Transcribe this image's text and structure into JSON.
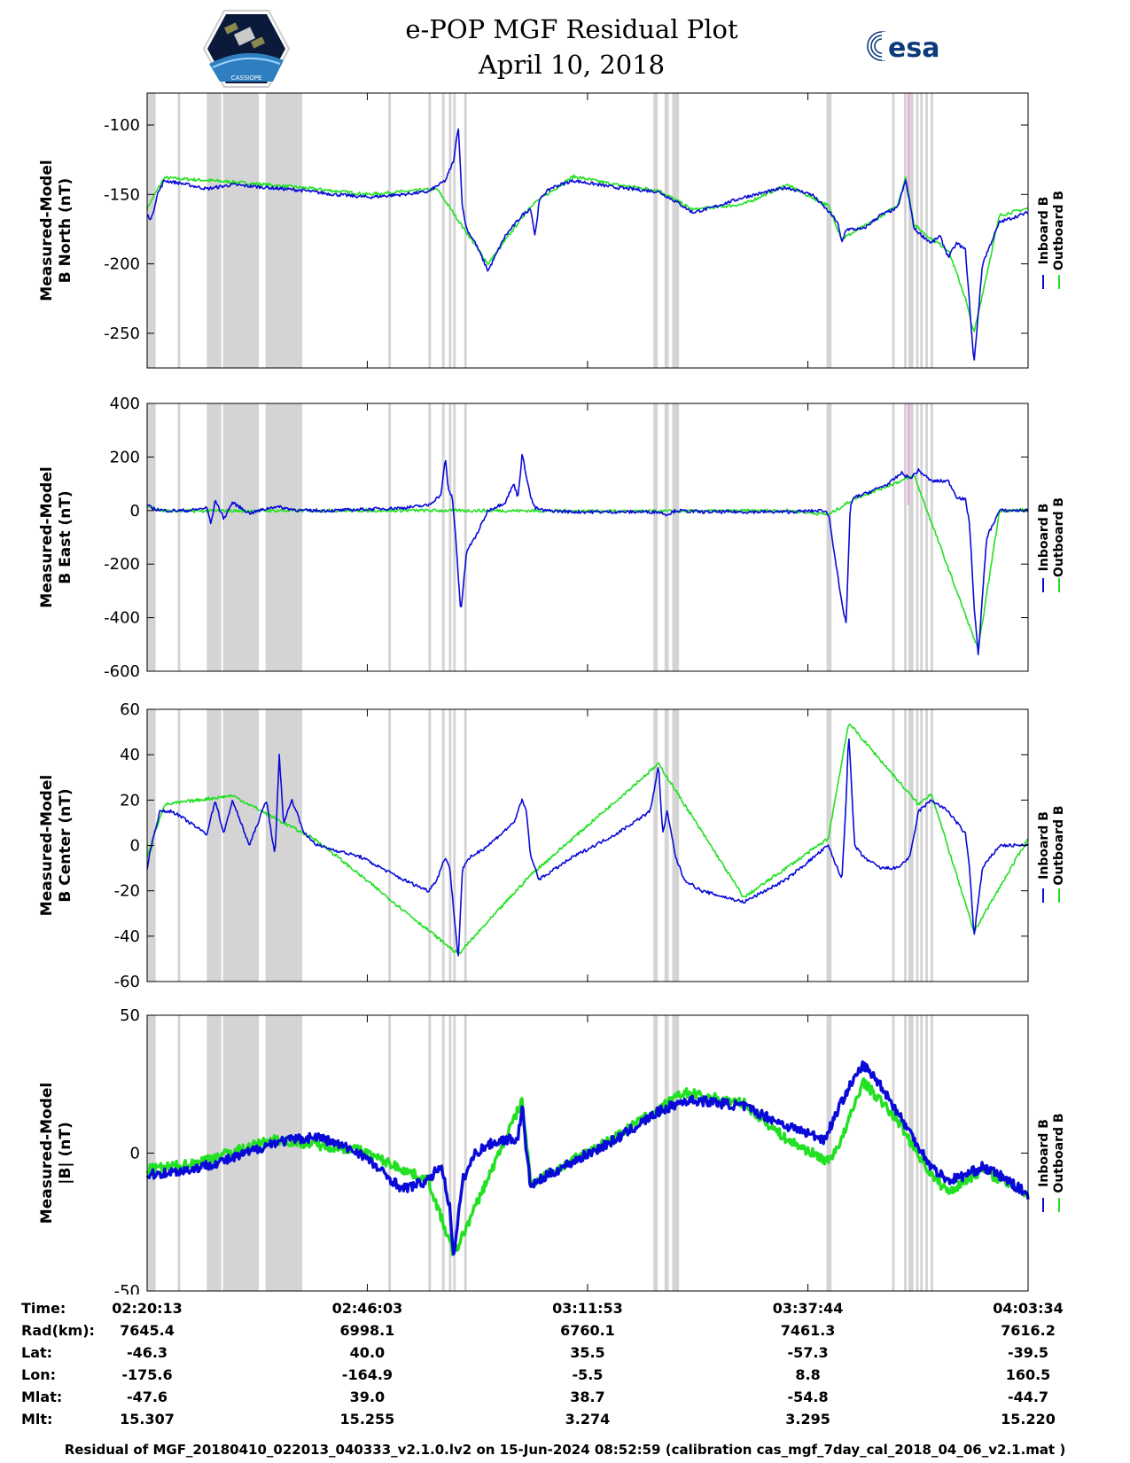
{
  "title": {
    "line1": "e-POP MGF Residual Plot",
    "line2": "April 10, 2018"
  },
  "logos": {
    "left": "cassiope-satellite-logo",
    "left_text": "CASSIOPE",
    "right": "esa-logo",
    "right_text": "esa"
  },
  "colors": {
    "inboard": "#0a0ad8",
    "outboard": "#22e022",
    "shade": "#d4d4d4",
    "marker": "#f0a0e0"
  },
  "legend": {
    "inboard_label": "Inboard B",
    "outboard_label": "Outboard B"
  },
  "x_axis": {
    "range_min": [
      0,
      103.35
    ],
    "tick_positions_min": [
      0,
      25.83,
      51.67,
      77.52,
      103.35
    ]
  },
  "chart_data": [
    {
      "type": "line",
      "panel": "B North",
      "ylabel": [
        "Measured-Model",
        "B North (nT)"
      ],
      "ylim": [
        -275,
        -77
      ],
      "yticks": [
        -100,
        -150,
        -200,
        -250
      ],
      "ytick_labels": [
        "-100",
        "-150",
        "-200",
        "-250"
      ],
      "series": [
        {
          "name": "Inboard B",
          "x": [
            0,
            0.5,
            1.2,
            2.0,
            4.0,
            7.0,
            10.0,
            14.0,
            18.0,
            22.0,
            26.0,
            30.0,
            33.0,
            35.0,
            36.0,
            36.5,
            37.0,
            37.5,
            38.5,
            40.0,
            42.0,
            44.0,
            45.0,
            45.5,
            46.0,
            46.5,
            47.5,
            50.0,
            55.0,
            60.0,
            62.0,
            64.0,
            66.0,
            70.0,
            75.0,
            78.0,
            79.9,
            81.0,
            81.5,
            82.0,
            84.0,
            86.0,
            88.0,
            89.0,
            90.0,
            91.0,
            92.0,
            93.0,
            94.0,
            95.0,
            96.0,
            96.5,
            97.0,
            98.0,
            100.0,
            103.35
          ],
          "y": [
            -165,
            -168,
            -150,
            -140,
            -142,
            -146,
            -143,
            -145,
            -147,
            -150,
            -152,
            -150,
            -148,
            -140,
            -125,
            -100,
            -160,
            -175,
            -185,
            -205,
            -180,
            -165,
            -160,
            -180,
            -155,
            -150,
            -145,
            -140,
            -145,
            -148,
            -155,
            -163,
            -160,
            -152,
            -145,
            -150,
            -162,
            -170,
            -185,
            -175,
            -175,
            -165,
            -160,
            -140,
            -175,
            -180,
            -185,
            -180,
            -195,
            -185,
            -190,
            -230,
            -272,
            -200,
            -170,
            -163
          ]
        },
        {
          "name": "Outboard B",
          "x": [
            0,
            2.0,
            10.0,
            18.0,
            26.0,
            34.0,
            40.0,
            45.0,
            50.0,
            55.0,
            60.0,
            64.0,
            70.0,
            75.0,
            79.9,
            81.5,
            85.0,
            88.0,
            89.0,
            90.0,
            92.0,
            94.0,
            96.0,
            97.0,
            100.0,
            103.35
          ],
          "y": [
            -160,
            -138,
            -141,
            -145,
            -150,
            -146,
            -200,
            -158,
            -137,
            -143,
            -147,
            -161,
            -157,
            -143,
            -158,
            -182,
            -170,
            -158,
            -138,
            -172,
            -182,
            -190,
            -225,
            -250,
            -165,
            -160
          ]
        }
      ],
      "shaded_regions_min": [
        [
          0,
          1
        ],
        [
          3.6,
          3.9
        ],
        [
          7.0,
          8.7
        ],
        [
          8.9,
          13.1
        ],
        [
          13.9,
          18.2
        ],
        [
          28.3,
          28.6
        ],
        [
          33.0,
          33.3
        ],
        [
          34.6,
          34.9
        ],
        [
          35.4,
          35.7
        ],
        [
          35.9,
          36.2
        ],
        [
          37.2,
          37.5
        ],
        [
          59.4,
          59.9
        ],
        [
          60.7,
          61.2
        ],
        [
          61.6,
          62.4
        ],
        [
          79.7,
          80.3
        ],
        [
          87.4,
          87.7
        ],
        [
          88.8,
          89.1
        ],
        [
          89.3,
          89.9
        ],
        [
          90.2,
          90.5
        ],
        [
          90.7,
          91.0
        ],
        [
          91.3,
          91.6
        ],
        [
          91.9,
          92.2
        ]
      ],
      "marker_min": 89.3
    },
    {
      "type": "line",
      "panel": "B East",
      "ylabel": [
        "Measured-Model",
        "B East (nT)"
      ],
      "ylim": [
        -600,
        400
      ],
      "yticks": [
        400,
        200,
        0,
        -200,
        -400,
        -600
      ],
      "ytick_labels": [
        "400",
        "200",
        "0",
        "-200",
        "-400",
        "-600"
      ],
      "series": [
        {
          "name": "Inboard B",
          "x": [
            0,
            0.5,
            1.0,
            2.0,
            5.0,
            7.0,
            7.5,
            8.0,
            9.0,
            10.0,
            12.0,
            15.0,
            18.0,
            22.0,
            26.0,
            30.0,
            33.0,
            34.5,
            35.0,
            35.3,
            35.8,
            36.2,
            36.8,
            37.5,
            38.5,
            40.0,
            42.0,
            43.0,
            43.5,
            44.0,
            45.0,
            45.5,
            46.5,
            50.0,
            55.0,
            60.0,
            61.0,
            62.0,
            65.0,
            70.0,
            75.0,
            79.5,
            80.0,
            81.5,
            82.0,
            82.5,
            83.0,
            84.0,
            87.0,
            88.5,
            89.5,
            90.5,
            92.0,
            94.0,
            95.0,
            96.0,
            96.5,
            97.0,
            97.5,
            98.5,
            100.0,
            103.35
          ],
          "y": [
            20,
            10,
            5,
            0,
            0,
            10,
            -50,
            40,
            -30,
            30,
            -10,
            15,
            0,
            0,
            5,
            10,
            20,
            60,
            200,
            80,
            50,
            -100,
            -380,
            -150,
            -100,
            0,
            30,
            100,
            50,
            210,
            50,
            10,
            0,
            -5,
            -5,
            -5,
            -15,
            0,
            -5,
            -5,
            -5,
            0,
            -20,
            -350,
            -420,
            20,
            50,
            60,
            100,
            140,
            120,
            150,
            110,
            110,
            50,
            40,
            -50,
            -350,
            -540,
            -100,
            0,
            0
          ]
        },
        {
          "name": "Outboard B",
          "x": [
            0,
            2.0,
            20.0,
            40.0,
            60.0,
            75.0,
            80.0,
            83.0,
            90.0,
            97.5,
            100.0,
            103.35
          ],
          "y": [
            15,
            -2,
            0,
            0,
            -3,
            0,
            -15,
            45,
            130,
            -520,
            0,
            2
          ]
        }
      ],
      "shaded_regions_min": [
        [
          0,
          1
        ],
        [
          3.6,
          3.9
        ],
        [
          7.0,
          8.7
        ],
        [
          8.9,
          13.1
        ],
        [
          13.9,
          18.2
        ],
        [
          28.3,
          28.6
        ],
        [
          33.0,
          33.3
        ],
        [
          34.6,
          34.9
        ],
        [
          35.4,
          35.7
        ],
        [
          35.9,
          36.2
        ],
        [
          37.2,
          37.5
        ],
        [
          59.4,
          59.9
        ],
        [
          60.7,
          61.2
        ],
        [
          61.6,
          62.4
        ],
        [
          79.7,
          80.3
        ],
        [
          87.4,
          87.7
        ],
        [
          88.8,
          89.1
        ],
        [
          89.3,
          89.9
        ],
        [
          90.2,
          90.5
        ],
        [
          90.7,
          91.0
        ],
        [
          91.3,
          91.6
        ],
        [
          91.9,
          92.2
        ]
      ],
      "marker_min": 89.3
    },
    {
      "type": "line",
      "panel": "B Center",
      "ylabel": [
        "Measured-Model",
        "B Center (nT)"
      ],
      "ylim": [
        -60,
        60
      ],
      "yticks": [
        60,
        40,
        20,
        0,
        -20,
        -40,
        -60
      ],
      "ytick_labels": [
        "60",
        "40",
        "20",
        "0",
        "-20",
        "-40",
        "-60"
      ],
      "series": [
        {
          "name": "Inboard B",
          "x": [
            0,
            0.5,
            1.5,
            3.0,
            5.0,
            7.0,
            8.0,
            9.0,
            10.0,
            12.0,
            14.0,
            15.0,
            15.5,
            16.0,
            17.0,
            18.5,
            20.0,
            25.0,
            30.0,
            33.0,
            34.0,
            35.0,
            35.5,
            36.0,
            36.5,
            37.0,
            38.0,
            40.0,
            43.0,
            44.0,
            44.5,
            45.0,
            46.0,
            50.0,
            55.0,
            59.0,
            60.0,
            60.5,
            61.0,
            62.0,
            63.0,
            65.0,
            70.0,
            75.0,
            79.9,
            81.5,
            82.0,
            82.3,
            83.0,
            84.0,
            86.0,
            88.0,
            89.5,
            90.5,
            92.0,
            94.0,
            96.0,
            96.5,
            97.0,
            98.0,
            100.0,
            103.35
          ],
          "y": [
            -10,
            0,
            15,
            15,
            10,
            5,
            20,
            5,
            20,
            0,
            20,
            -5,
            40,
            10,
            20,
            5,
            0,
            -5,
            -15,
            -20,
            -15,
            -5,
            -10,
            -30,
            -50,
            -10,
            -5,
            0,
            10,
            20,
            15,
            -5,
            -15,
            -5,
            5,
            15,
            35,
            5,
            15,
            -5,
            -15,
            -20,
            -25,
            -15,
            0,
            -15,
            20,
            50,
            0,
            -5,
            -10,
            -10,
            -5,
            15,
            20,
            15,
            5,
            -10,
            -40,
            -10,
            0,
            0
          ]
        },
        {
          "name": "Outboard B",
          "x": [
            0,
            2.0,
            10.0,
            20.0,
            36.5,
            45.0,
            60.0,
            70.0,
            79.9,
            82.3,
            90.5,
            92.0,
            97.0,
            103.35
          ],
          "y": [
            -5,
            18,
            22,
            2,
            -48,
            -13,
            36,
            -23,
            3,
            54,
            18,
            23,
            -38,
            3
          ]
        }
      ],
      "shaded_regions_min": [
        [
          0,
          1
        ],
        [
          3.6,
          3.9
        ],
        [
          7.0,
          8.7
        ],
        [
          8.9,
          13.1
        ],
        [
          13.9,
          18.2
        ],
        [
          28.3,
          28.6
        ],
        [
          33.0,
          33.3
        ],
        [
          34.6,
          34.9
        ],
        [
          35.4,
          35.7
        ],
        [
          35.9,
          36.2
        ],
        [
          37.2,
          37.5
        ],
        [
          59.4,
          59.9
        ],
        [
          60.7,
          61.2
        ],
        [
          61.6,
          62.4
        ],
        [
          79.7,
          80.3
        ],
        [
          87.4,
          87.7
        ],
        [
          88.8,
          89.1
        ],
        [
          89.3,
          89.9
        ],
        [
          90.2,
          90.5
        ],
        [
          90.7,
          91.0
        ],
        [
          91.3,
          91.6
        ],
        [
          91.9,
          92.2
        ]
      ]
    },
    {
      "type": "line",
      "panel": "|B|",
      "ylabel": [
        "Measured-Model",
        "|B| (nT)"
      ],
      "ylim": [
        -50,
        50
      ],
      "yticks": [
        50,
        0,
        -50
      ],
      "ytick_labels": [
        "50",
        "0",
        "-50"
      ],
      "series": [
        {
          "name": "Inboard B",
          "x": [
            0,
            5.0,
            10.0,
            15.0,
            20.0,
            25.0,
            28.0,
            30.0,
            33.0,
            34.5,
            35.5,
            36.0,
            37.0,
            38.5,
            40.0,
            42.0,
            43.5,
            44.0,
            44.5,
            45.0,
            47.0,
            50.0,
            55.0,
            60.0,
            63.0,
            65.0,
            70.0,
            75.0,
            79.5,
            80.5,
            82.0,
            84.0,
            86.0,
            88.0,
            90.0,
            92.0,
            94.0,
            96.0,
            98.0,
            100.0,
            103.35
          ],
          "y": [
            -8,
            -6,
            -2,
            4,
            6,
            0,
            -8,
            -13,
            -10,
            -4,
            -20,
            -38,
            -10,
            0,
            3,
            5,
            5,
            18,
            0,
            -12,
            -8,
            -3,
            5,
            15,
            19,
            19,
            17,
            10,
            5,
            12,
            22,
            32,
            25,
            15,
            5,
            -5,
            -10,
            -8,
            -5,
            -8,
            -15
          ]
        },
        {
          "name": "Outboard B",
          "x": [
            0,
            5.0,
            15.0,
            25.0,
            33.0,
            36.0,
            44.0,
            45.0,
            55.0,
            63.0,
            70.0,
            75.0,
            79.9,
            81.5,
            84.0,
            88.0,
            92.0,
            94.0,
            98.0,
            103.35
          ],
          "y": [
            -6,
            -4,
            5,
            1,
            -10,
            -37,
            19,
            -11,
            6,
            22,
            18,
            5,
            -3,
            5,
            26,
            12,
            -8,
            -14,
            -6,
            -15
          ]
        }
      ],
      "shaded_regions_min": [
        [
          0,
          1
        ],
        [
          3.6,
          3.9
        ],
        [
          7.0,
          8.7
        ],
        [
          8.9,
          13.1
        ],
        [
          13.9,
          18.2
        ],
        [
          28.3,
          28.6
        ],
        [
          33.0,
          33.3
        ],
        [
          34.6,
          34.9
        ],
        [
          35.4,
          35.7
        ],
        [
          35.9,
          36.2
        ],
        [
          37.2,
          37.5
        ],
        [
          59.4,
          59.9
        ],
        [
          60.7,
          61.2
        ],
        [
          61.6,
          62.4
        ],
        [
          79.7,
          80.3
        ],
        [
          87.4,
          87.7
        ],
        [
          88.8,
          89.1
        ],
        [
          89.3,
          89.9
        ],
        [
          90.2,
          90.5
        ],
        [
          90.7,
          91.0
        ],
        [
          91.3,
          91.6
        ],
        [
          91.9,
          92.2
        ]
      ]
    }
  ],
  "info_table": {
    "labels": [
      "Time:",
      "Rad(km):",
      "Lat:",
      "Lon:",
      "Mlat:",
      "Mlt:"
    ],
    "columns": [
      {
        "time": "02:20:13",
        "rad": "7645.4",
        "lat": "-46.3",
        "lon": "-175.6",
        "mlat": "-47.6",
        "mlt": "15.307"
      },
      {
        "time": "02:46:03",
        "rad": "6998.1",
        "lat": "40.0",
        "lon": "-164.9",
        "mlat": "39.0",
        "mlt": "15.255"
      },
      {
        "time": "03:11:53",
        "rad": "6760.1",
        "lat": "35.5",
        "lon": "-5.5",
        "mlat": "38.7",
        "mlt": "3.274"
      },
      {
        "time": "03:37:44",
        "rad": "7461.3",
        "lat": "-57.3",
        "lon": "8.8",
        "mlat": "-54.8",
        "mlt": "3.295"
      },
      {
        "time": "04:03:34",
        "rad": "7616.2",
        "lat": "-39.5",
        "lon": "160.5",
        "mlat": "-44.7",
        "mlt": "15.220"
      }
    ]
  },
  "footer": "Residual of MGF_20180410_022013_040333_v2.1.0.lv2 on 15-Jun-2024 08:52:59 (calibration cas_mgf_7day_cal_2018_04_06_v2.1.mat )"
}
